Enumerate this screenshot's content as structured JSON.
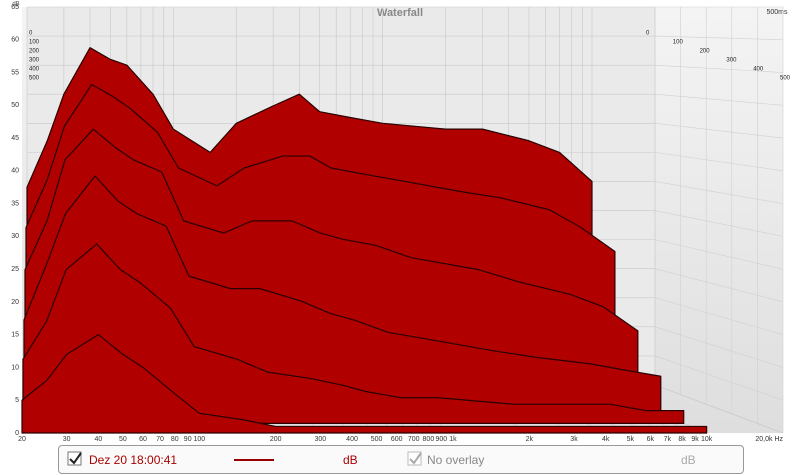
{
  "chart_data": {
    "type": "waterfall",
    "title": "Waterfall",
    "y_label": "dB",
    "time_label": "500ms",
    "color": "#b00000",
    "x": [
      20,
      25,
      30,
      40,
      50,
      60,
      80,
      100,
      150,
      200,
      300,
      400,
      500,
      700,
      1000,
      2000,
      3000,
      5000,
      7000,
      10000
    ],
    "series": [
      {
        "values": [
          34,
          42,
          50,
          58,
          56,
          55,
          50,
          44,
          40,
          45,
          48,
          50,
          47,
          46,
          45,
          44,
          44,
          42,
          40,
          35
        ]
      },
      {
        "values": [
          28,
          36,
          45,
          52,
          50,
          48,
          44,
          38,
          35,
          38,
          40,
          40,
          38,
          37,
          36,
          34,
          33,
          31,
          28,
          24
        ]
      },
      {
        "values": [
          22,
          30,
          40,
          45,
          42,
          40,
          38,
          30,
          28,
          30,
          30,
          28,
          27,
          26,
          24,
          22,
          20,
          18,
          16,
          12
        ]
      },
      {
        "values": [
          15,
          24,
          32,
          38,
          34,
          32,
          30,
          22,
          20,
          20,
          18,
          16,
          15,
          13,
          12,
          10,
          9,
          8,
          7,
          6
        ]
      },
      {
        "values": [
          10,
          16,
          24,
          28,
          24,
          22,
          18,
          12,
          10,
          8,
          7,
          6,
          5,
          4,
          4,
          3,
          3,
          3,
          2,
          2
        ]
      },
      {
        "values": [
          5,
          8,
          12,
          15,
          12,
          10,
          6,
          3,
          2,
          1,
          1,
          1,
          1,
          1,
          1,
          1,
          1,
          1,
          1,
          1
        ]
      }
    ],
    "log_x": true,
    "xlim": [
      20,
      20000
    ],
    "xticks": [
      20,
      30,
      40,
      50,
      60,
      70,
      80,
      90,
      100,
      200,
      300,
      400,
      500,
      600,
      700,
      800,
      900,
      {
        "value": 1000,
        "label": "1k"
      },
      {
        "value": 2000,
        "label": "2k"
      },
      {
        "value": 3000,
        "label": "3k"
      },
      {
        "value": 4000,
        "label": "4k"
      },
      {
        "value": 5000,
        "label": "5k"
      },
      {
        "value": 6000,
        "label": "6k"
      },
      {
        "value": 7000,
        "label": "7k"
      },
      {
        "value": 8000,
        "label": "8k"
      },
      {
        "value": 9000,
        "label": "9k"
      },
      {
        "value": 10000,
        "label": "10k"
      },
      {
        "value": 20000,
        "label": "20,0k Hz"
      }
    ],
    "ylim": [
      0,
      65
    ],
    "yticks": [
      0,
      5,
      10,
      15,
      20,
      25,
      30,
      35,
      40,
      45,
      50,
      55,
      60,
      65
    ],
    "zlim": [
      0,
      500
    ],
    "zticks": [
      0,
      100,
      200,
      300,
      400,
      500
    ],
    "grid": true
  },
  "controls": {
    "measurement": "Dez 20 18:00:41",
    "unit": "dB",
    "overlay": "No overlay",
    "overlay_unit": "dB"
  }
}
